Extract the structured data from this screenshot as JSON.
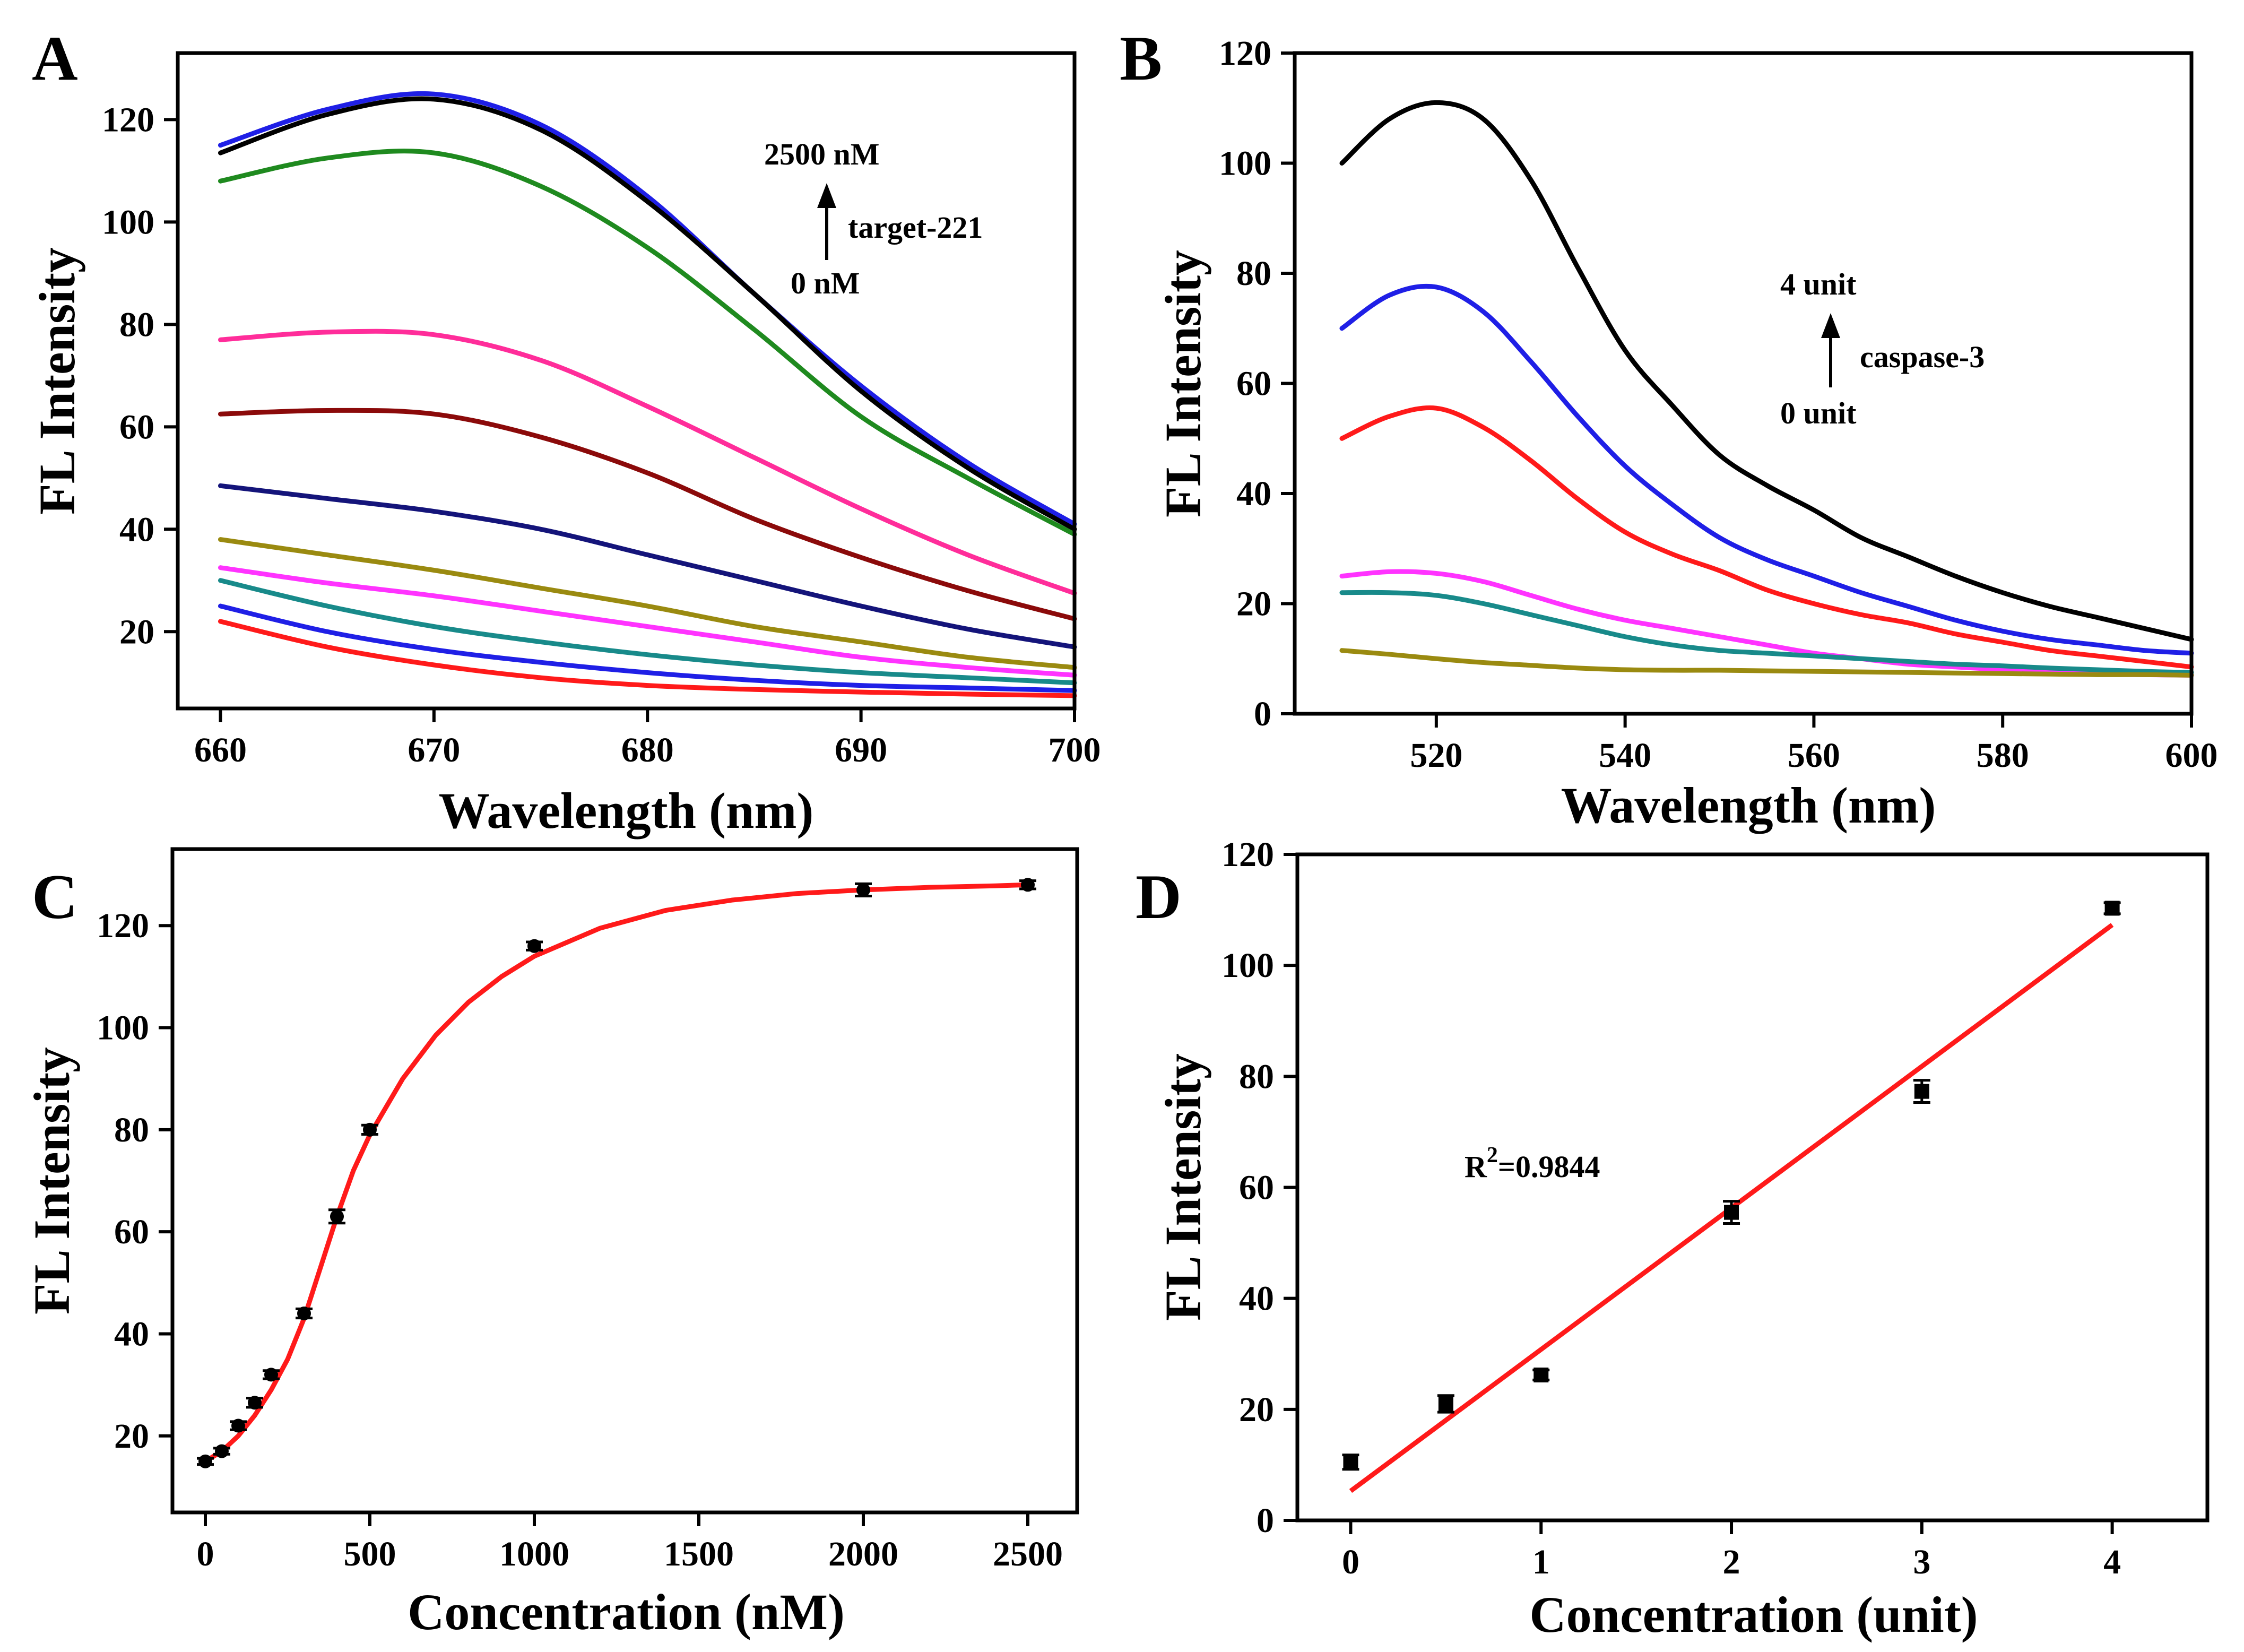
{
  "colors": {
    "black": "#000000",
    "blue": "#1f1fe6",
    "green": "#1f8a1f",
    "pink": "#ff2d9a",
    "maroon": "#8b0a0a",
    "navy": "#14147a",
    "olive": "#9a8a10",
    "magenta": "#ff33ff",
    "teal": "#188a8a",
    "red": "#ff1a1a"
  },
  "chart_data": [
    {
      "panel": "A",
      "type": "line",
      "xlabel": "Wavelength (nm)",
      "ylabel": "FL Intensity",
      "xlim": [
        658,
        700
      ],
      "ylim": [
        5,
        133
      ],
      "xticks": [
        660,
        670,
        680,
        690,
        700
      ],
      "yticks": [
        20,
        40,
        60,
        80,
        100,
        120
      ],
      "annotations": {
        "top": "2500 nM",
        "arrow_label": "target-221",
        "bottom": "0 nM"
      },
      "x": [
        660,
        665,
        670,
        675,
        680,
        685,
        690,
        695,
        700
      ],
      "series": [
        {
          "color": "blue",
          "values": [
            115,
            122,
            125,
            119,
            105,
            86,
            68,
            53,
            41
          ]
        },
        {
          "color": "black",
          "values": [
            113.5,
            121,
            124,
            118,
            104,
            86,
            67,
            52,
            40
          ]
        },
        {
          "color": "green",
          "values": [
            108,
            112.5,
            113.5,
            107,
            95,
            79,
            62,
            50,
            39
          ]
        },
        {
          "color": "pink",
          "values": [
            77,
            78.5,
            78,
            73,
            64,
            54,
            44,
            35,
            27.5
          ]
        },
        {
          "color": "maroon",
          "values": [
            62.5,
            63.2,
            62.5,
            58,
            51,
            42,
            34.5,
            28,
            22.5
          ]
        },
        {
          "color": "navy",
          "values": [
            48.5,
            46,
            43.5,
            40,
            35,
            30,
            25,
            20.5,
            17
          ]
        },
        {
          "color": "olive",
          "values": [
            38,
            35,
            32,
            28.5,
            25,
            21,
            18,
            15,
            13
          ]
        },
        {
          "color": "magenta",
          "values": [
            32.5,
            29.5,
            27,
            24,
            21,
            18,
            15,
            13,
            11.5
          ]
        },
        {
          "color": "teal",
          "values": [
            30,
            25,
            21,
            18,
            15.5,
            13.5,
            12,
            11,
            10
          ]
        },
        {
          "color": "blue",
          "values": [
            25,
            20,
            16.5,
            14,
            12,
            10.5,
            9.5,
            9,
            8.5
          ]
        },
        {
          "color": "red",
          "values": [
            22,
            17,
            13.5,
            11,
            9.5,
            8.7,
            8.2,
            7.8,
            7.5
          ]
        }
      ]
    },
    {
      "panel": "B",
      "type": "line",
      "xlabel": "Wavelength (nm)",
      "ylabel": "FL Intensity",
      "xlim": [
        505,
        600
      ],
      "ylim": [
        0,
        120
      ],
      "xticks": [
        520,
        540,
        560,
        580,
        600
      ],
      "yticks": [
        0,
        20,
        40,
        60,
        80,
        100,
        120
      ],
      "annotations": {
        "top": "4 unit",
        "arrow_label": "caspase-3",
        "bottom": "0 unit"
      },
      "x": [
        510,
        515,
        520,
        525,
        530,
        535,
        540,
        545,
        550,
        555,
        560,
        565,
        570,
        575,
        580,
        585,
        590,
        595,
        600
      ],
      "series": [
        {
          "color": "black",
          "values": [
            100,
            108,
            111,
            108,
            97,
            81,
            66,
            56,
            47,
            41.5,
            37,
            32,
            28.5,
            25,
            22,
            19.5,
            17.5,
            15.5,
            13.5
          ]
        },
        {
          "color": "blue",
          "values": [
            70,
            76,
            77.5,
            73,
            64,
            54,
            45,
            38,
            32,
            28,
            25,
            22,
            19.5,
            17,
            15,
            13.5,
            12.5,
            11.5,
            11
          ]
        },
        {
          "color": "red",
          "values": [
            50,
            54,
            55.5,
            52,
            46,
            39,
            33,
            29,
            26,
            22.5,
            20,
            18,
            16.5,
            14.5,
            13,
            11.5,
            10.5,
            9.5,
            8.5
          ]
        },
        {
          "color": "magenta",
          "values": [
            25,
            25.8,
            25.5,
            24,
            21.5,
            19,
            17,
            15.5,
            14,
            12.5,
            11,
            10,
            9,
            8.5,
            8,
            7.5,
            7.2,
            7.1,
            7
          ]
        },
        {
          "color": "teal",
          "values": [
            22,
            22,
            21.5,
            20,
            18,
            16,
            14,
            12.5,
            11.5,
            11,
            10.5,
            10,
            9.5,
            9,
            8.7,
            8.3,
            8,
            7.7,
            7.5
          ]
        },
        {
          "color": "olive",
          "values": [
            11.5,
            10.8,
            10,
            9.3,
            8.8,
            8.3,
            8,
            7.9,
            7.9,
            7.8,
            7.7,
            7.6,
            7.5,
            7.4,
            7.3,
            7.2,
            7.1,
            7.1,
            7
          ]
        }
      ]
    },
    {
      "panel": "C",
      "type": "scatter",
      "xlabel": "Concentration (nM)",
      "ylabel": "FL Intensity",
      "xlim": [
        -100,
        2650
      ],
      "ylim": [
        5,
        135
      ],
      "xticks": [
        0,
        500,
        1000,
        1500,
        2000,
        2500
      ],
      "yticks": [
        20,
        40,
        60,
        80,
        100,
        120
      ],
      "points": [
        {
          "x": 0,
          "y": 15,
          "err": 0.6
        },
        {
          "x": 50,
          "y": 17,
          "err": 0.6
        },
        {
          "x": 100,
          "y": 22,
          "err": 0.8
        },
        {
          "x": 150,
          "y": 26.5,
          "err": 0.9
        },
        {
          "x": 200,
          "y": 32,
          "err": 0.8
        },
        {
          "x": 300,
          "y": 44,
          "err": 0.9
        },
        {
          "x": 400,
          "y": 63,
          "err": 1.3
        },
        {
          "x": 500,
          "y": 80,
          "err": 0.9
        },
        {
          "x": 1000,
          "y": 116,
          "err": 0.8
        },
        {
          "x": 2000,
          "y": 127,
          "err": 1.2
        },
        {
          "x": 2500,
          "y": 128,
          "err": 0.8
        }
      ],
      "fit": {
        "color": "red",
        "x": [
          0,
          50,
          100,
          150,
          200,
          250,
          300,
          350,
          400,
          450,
          500,
          600,
          700,
          800,
          900,
          1000,
          1200,
          1400,
          1600,
          1800,
          2000,
          2200,
          2400,
          2500
        ],
        "y": [
          15,
          17,
          20,
          24,
          29,
          35,
          43,
          53,
          63,
          72,
          79,
          90,
          98.5,
          105,
          110,
          114,
          119.5,
          123,
          125,
          126.3,
          127,
          127.5,
          127.8,
          128
        ]
      }
    },
    {
      "panel": "D",
      "type": "scatter",
      "xlabel": "Concentration (unit)",
      "ylabel": "FL Intensity",
      "xlim": [
        -0.28,
        4.5
      ],
      "ylim": [
        0,
        120
      ],
      "xticks": [
        0,
        1,
        2,
        3,
        4
      ],
      "yticks": [
        0,
        20,
        40,
        60,
        80,
        100,
        120
      ],
      "annotation": {
        "prefix": "R",
        "sup": "2",
        "suffix": "=0.9844"
      },
      "points": [
        {
          "x": 0,
          "y": 10.5,
          "err": 1.3
        },
        {
          "x": 0.5,
          "y": 21,
          "err": 1.5
        },
        {
          "x": 1,
          "y": 26.2,
          "err": 0.9
        },
        {
          "x": 2,
          "y": 55.5,
          "err": 2.0
        },
        {
          "x": 3,
          "y": 77.3,
          "err": 2.0
        },
        {
          "x": 4,
          "y": 110.3,
          "err": 1.0
        }
      ],
      "fit": {
        "color": "red",
        "x": [
          0,
          4
        ],
        "y": [
          5.3,
          107.3
        ]
      }
    }
  ]
}
